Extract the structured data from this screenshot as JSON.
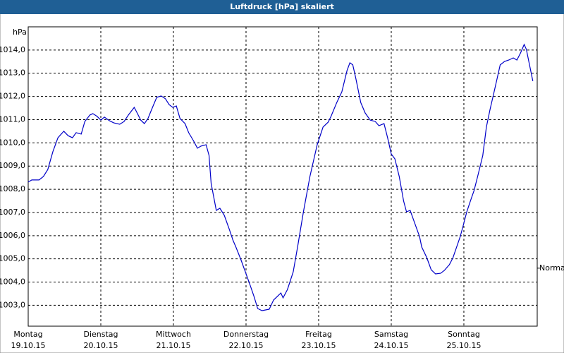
{
  "chart_data": {
    "type": "line",
    "title": "Luftdruck [hPa] skaliert",
    "y_unit": "hPa",
    "xlim": [
      0,
      7.01
    ],
    "xticks": [
      {
        "value": 0,
        "label": "Montag"
      },
      {
        "value": 1,
        "label": "Dienstag"
      },
      {
        "value": 2,
        "label": "Mittwoch"
      },
      {
        "value": 3,
        "label": "Donnerstag"
      },
      {
        "value": 4,
        "label": "Freitag"
      },
      {
        "value": 5,
        "label": "Samstag"
      },
      {
        "value": 6,
        "label": "Sonntag"
      }
    ],
    "xtick_dates": [
      "19.10.15",
      "20.10.15",
      "21.10.15",
      "22.10.15",
      "23.10.15",
      "24.10.15",
      "25.10.15"
    ],
    "ylim": [
      1002.1,
      1015.0
    ],
    "yticks": [
      {
        "value": 1003,
        "label": "1003,0"
      },
      {
        "value": 1004,
        "label": "1004,0"
      },
      {
        "value": 1005,
        "label": "1005,0"
      },
      {
        "value": 1006,
        "label": "1006,0"
      },
      {
        "value": 1007,
        "label": "1007,0"
      },
      {
        "value": 1008,
        "label": "1008,0"
      },
      {
        "value": 1009,
        "label": "1009,0"
      },
      {
        "value": 1010,
        "label": "1010,0"
      },
      {
        "value": 1011,
        "label": "1011,0"
      },
      {
        "value": 1012,
        "label": "1012,0"
      },
      {
        "value": 1013,
        "label": "1013,0"
      },
      {
        "value": 1014,
        "label": "1014,0"
      }
    ],
    "grid": true,
    "reference": {
      "label": "Normal",
      "value": 1004.6
    },
    "series": [
      {
        "name": "Luftdruck",
        "color": "#0000c8",
        "x": [
          0,
          0.05,
          0.15,
          0.21,
          0.27,
          0.34,
          0.41,
          0.49,
          0.55,
          0.61,
          0.66,
          0.73,
          0.78,
          0.85,
          0.89,
          0.95,
          1.0,
          1.05,
          1.12,
          1.18,
          1.26,
          1.32,
          1.38,
          1.46,
          1.5,
          1.55,
          1.6,
          1.65,
          1.7,
          1.77,
          1.83,
          1.89,
          1.94,
          1.99,
          2.04,
          2.09,
          2.16,
          2.21,
          2.28,
          2.33,
          2.38,
          2.45,
          2.49,
          2.52,
          2.59,
          2.64,
          2.7,
          2.77,
          2.82,
          2.86,
          2.93,
          2.99,
          3.06,
          3.11,
          3.16,
          3.22,
          3.32,
          3.38,
          3.43,
          3.48,
          3.51,
          3.57,
          3.65,
          3.71,
          3.79,
          3.88,
          3.98,
          4.06,
          4.13,
          4.17,
          4.25,
          4.32,
          4.39,
          4.43,
          4.47,
          4.51,
          4.58,
          4.64,
          4.71,
          4.78,
          4.83,
          4.9,
          4.95,
          5.0,
          5.05,
          5.11,
          5.17,
          5.21,
          5.26,
          5.32,
          5.39,
          5.42,
          5.49,
          5.55,
          5.61,
          5.68,
          5.73,
          5.8,
          5.85,
          5.9,
          5.95,
          5.99,
          6.04,
          6.09,
          6.14,
          6.19,
          6.26,
          6.31,
          6.36,
          6.41,
          6.46,
          6.5,
          6.56,
          6.62,
          6.68,
          6.73,
          6.78,
          6.83,
          6.86,
          6.91,
          6.95
        ],
        "values": [
          1008.31,
          1008.4,
          1008.4,
          1008.55,
          1008.85,
          1009.62,
          1010.22,
          1010.5,
          1010.31,
          1010.22,
          1010.44,
          1010.38,
          1010.92,
          1011.2,
          1011.26,
          1011.14,
          1010.98,
          1011.11,
          1010.95,
          1010.86,
          1010.8,
          1010.92,
          1011.2,
          1011.53,
          1011.29,
          1010.98,
          1010.83,
          1011.05,
          1011.44,
          1011.96,
          1012.02,
          1011.9,
          1011.65,
          1011.53,
          1011.59,
          1011.05,
          1010.83,
          1010.44,
          1010.07,
          1009.77,
          1009.86,
          1009.92,
          1009.46,
          1008.25,
          1007.09,
          1007.18,
          1006.88,
          1006.27,
          1005.81,
          1005.51,
          1004.96,
          1004.44,
          1003.83,
          1003.38,
          1002.86,
          1002.77,
          1002.83,
          1003.23,
          1003.38,
          1003.53,
          1003.32,
          1003.68,
          1004.44,
          1005.51,
          1007.03,
          1008.55,
          1009.92,
          1010.68,
          1010.89,
          1011.14,
          1011.74,
          1012.2,
          1013.11,
          1013.45,
          1013.36,
          1012.81,
          1011.74,
          1011.29,
          1010.98,
          1010.92,
          1010.74,
          1010.83,
          1010.22,
          1009.52,
          1009.31,
          1008.55,
          1007.49,
          1007.03,
          1007.09,
          1006.57,
          1005.96,
          1005.51,
          1005.05,
          1004.53,
          1004.35,
          1004.38,
          1004.5,
          1004.75,
          1005.05,
          1005.51,
          1005.96,
          1006.42,
          1007.03,
          1007.49,
          1007.94,
          1008.55,
          1009.46,
          1010.68,
          1011.44,
          1012.11,
          1012.81,
          1013.36,
          1013.51,
          1013.57,
          1013.66,
          1013.57,
          1013.87,
          1014.24,
          1014.03,
          1013.27,
          1012.66
        ]
      }
    ]
  }
}
